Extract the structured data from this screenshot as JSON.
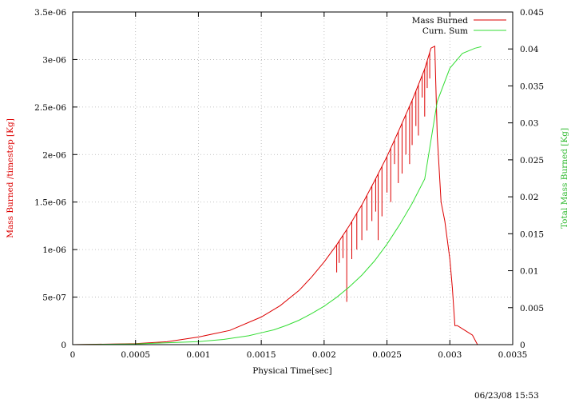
{
  "timestamp": "06/23/08 15:53",
  "colors": {
    "mass_burned": "#dd0000",
    "cum_sum": "#33dd33",
    "axis": "#000000",
    "grid": "#b0b0b0"
  },
  "chart_data": {
    "type": "line",
    "xlabel": "Physical Time[sec]",
    "ylabel": "Mass Burned /timestep [Kg]",
    "y2label": "Total Mass Burned [Kg]",
    "xlim": [
      0,
      0.0035
    ],
    "ylim": [
      0,
      3.5e-06
    ],
    "y2lim": [
      0,
      0.045
    ],
    "grid": true,
    "legend_position": "top-right",
    "x_ticks": [
      0,
      0.0005,
      0.001,
      0.0015,
      0.002,
      0.0025,
      0.003,
      0.0035
    ],
    "x_tick_labels": [
      "0",
      "0.0005",
      "0.001",
      "0.0015",
      "0.002",
      "0.0025",
      "0.003",
      "0.0035"
    ],
    "y_ticks": [
      0,
      5e-07,
      1e-06,
      1.5e-06,
      2e-06,
      2.5e-06,
      3e-06,
      3.5e-06
    ],
    "y_tick_labels": [
      "0",
      "5e-07",
      "1e-06",
      "1.5e-06",
      "2e-06",
      "2.5e-06",
      "3e-06",
      "3.5e-06"
    ],
    "y2_ticks": [
      0,
      0.005,
      0.01,
      0.015,
      0.02,
      0.025,
      0.03,
      0.035,
      0.04,
      0.045
    ],
    "y2_tick_labels": [
      "0",
      "0.005",
      "0.01",
      "0.015",
      "0.02",
      "0.025",
      "0.03",
      "0.035",
      "0.04",
      "0.045"
    ],
    "series": [
      {
        "name": "Mass Burned",
        "axis": "y",
        "x": [
          0,
          0.0005,
          0.00075,
          0.001,
          0.00125,
          0.0015,
          0.00165,
          0.0018,
          0.0019,
          0.002,
          0.0021,
          0.0022,
          0.0023,
          0.0024,
          0.0025,
          0.0026,
          0.0027,
          0.0028,
          0.00285,
          0.00288,
          0.0029,
          0.00293,
          0.00296,
          0.003,
          0.00302,
          0.00304,
          0.00306,
          0.00312,
          0.00318,
          0.00322
        ],
        "values": [
          0,
          1e-08,
          3e-08,
          8e-08,
          1.5e-07,
          2.9e-07,
          4.1e-07,
          5.7e-07,
          7.1e-07,
          8.7e-07,
          1.05e-06,
          1.25e-06,
          1.47e-06,
          1.72e-06,
          1.98e-06,
          2.27e-06,
          2.57e-06,
          2.9e-06,
          3.12e-06,
          3.14e-06,
          2.2e-06,
          1.5e-06,
          1.3e-06,
          9e-07,
          6e-07,
          2e-07,
          2e-07,
          1.5e-07,
          1e-07,
          0
        ],
        "dips": [
          [
            0.0021,
            7.6e-07
          ],
          [
            0.00212,
            8.6e-07
          ],
          [
            0.00215,
            9.1e-07
          ],
          [
            0.00218,
            4.5e-07
          ],
          [
            0.00222,
            9e-07
          ],
          [
            0.00226,
            1e-06
          ],
          [
            0.0023,
            1.1e-06
          ],
          [
            0.00234,
            1.2e-06
          ],
          [
            0.00238,
            1.3e-06
          ],
          [
            0.00241,
            1.4e-06
          ],
          [
            0.00243,
            1.1e-06
          ],
          [
            0.00246,
            1.35e-06
          ],
          [
            0.0025,
            1.6e-06
          ],
          [
            0.00253,
            1.5e-06
          ],
          [
            0.00256,
            1.9e-06
          ],
          [
            0.00259,
            1.7e-06
          ],
          [
            0.00262,
            1.8e-06
          ],
          [
            0.00265,
            2e-06
          ],
          [
            0.00268,
            1.9e-06
          ],
          [
            0.0027,
            2.1e-06
          ],
          [
            0.00273,
            2.3e-06
          ],
          [
            0.00275,
            2.2e-06
          ],
          [
            0.00278,
            2.6e-06
          ],
          [
            0.0028,
            2.4e-06
          ],
          [
            0.00282,
            2.7e-06
          ],
          [
            0.00284,
            2.8e-06
          ]
        ]
      },
      {
        "name": "Curn. Sum",
        "axis": "y2",
        "x": [
          0,
          0.0005,
          0.001,
          0.0012,
          0.0014,
          0.0015,
          0.0016,
          0.0017,
          0.0018,
          0.0019,
          0.002,
          0.0021,
          0.0022,
          0.0023,
          0.0024,
          0.0025,
          0.0026,
          0.0027,
          0.0028,
          0.0029,
          0.003,
          0.0031,
          0.0032,
          0.00325
        ],
        "values": [
          0,
          0.0001,
          0.0004,
          0.0007,
          0.0012,
          0.0016,
          0.002,
          0.0026,
          0.0033,
          0.0042,
          0.0052,
          0.0064,
          0.0078,
          0.0094,
          0.0113,
          0.0136,
          0.0162,
          0.0191,
          0.0224,
          0.0329,
          0.0374,
          0.0394,
          0.0401,
          0.0403
        ]
      }
    ]
  }
}
